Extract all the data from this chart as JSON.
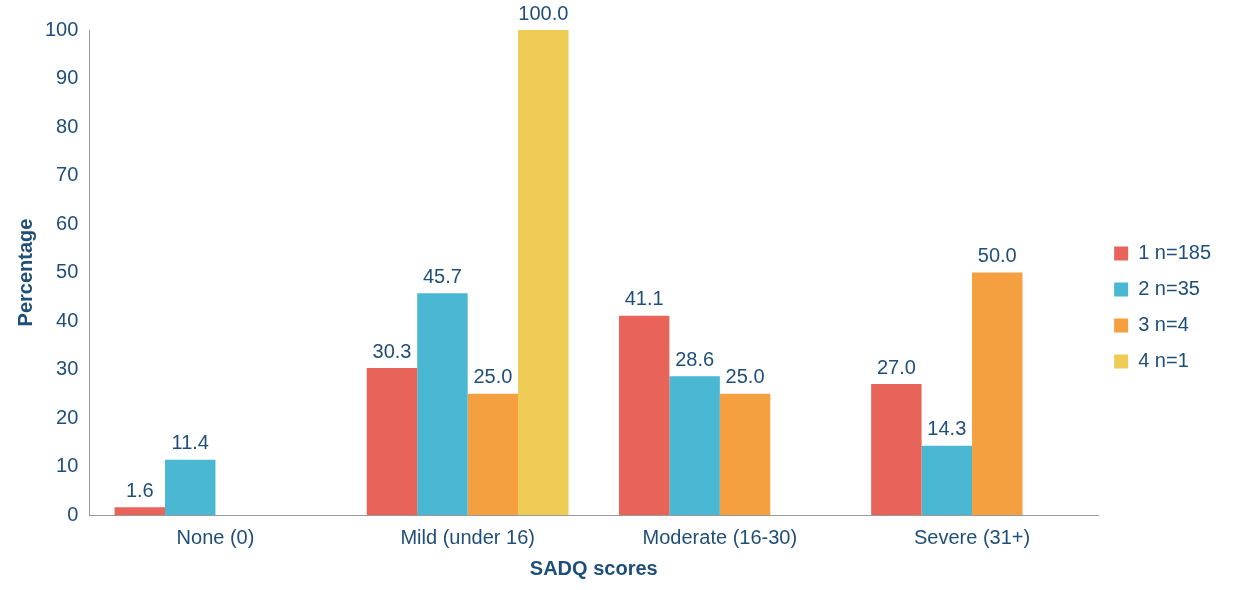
{
  "chart_data": {
    "type": "bar",
    "xlabel": "SADQ scores",
    "ylabel": "Percentage",
    "categories": [
      "None (0)",
      "Mild (under 16)",
      "Moderate (16-30)",
      "Severe (31+)"
    ],
    "series": [
      {
        "name": "1 n=185",
        "color": "#e8635a",
        "values": [
          1.6,
          30.3,
          41.1,
          27.0
        ],
        "value_labels": [
          "1.6",
          "30.3",
          "41.1",
          "27.0"
        ]
      },
      {
        "name": "2 n=35",
        "color": "#4ab8d3",
        "values": [
          11.4,
          45.7,
          28.6,
          14.3
        ],
        "value_labels": [
          "11.4",
          "45.7",
          "28.6",
          "14.3"
        ]
      },
      {
        "name": "3 n=4",
        "color": "#f4a040",
        "values": [
          null,
          25.0,
          25.0,
          50.0
        ],
        "value_labels": [
          null,
          "25.0",
          "25.0",
          "50.0"
        ]
      },
      {
        "name": "4 n=1",
        "color": "#eecb55",
        "values": [
          null,
          100.0,
          null,
          null
        ],
        "value_labels": [
          null,
          "100.0",
          null,
          null
        ]
      }
    ],
    "ylim": [
      0,
      100
    ],
    "yticks": [
      0,
      10,
      20,
      30,
      40,
      50,
      60,
      70,
      80,
      90,
      100
    ],
    "grid": false,
    "legend": "right"
  }
}
